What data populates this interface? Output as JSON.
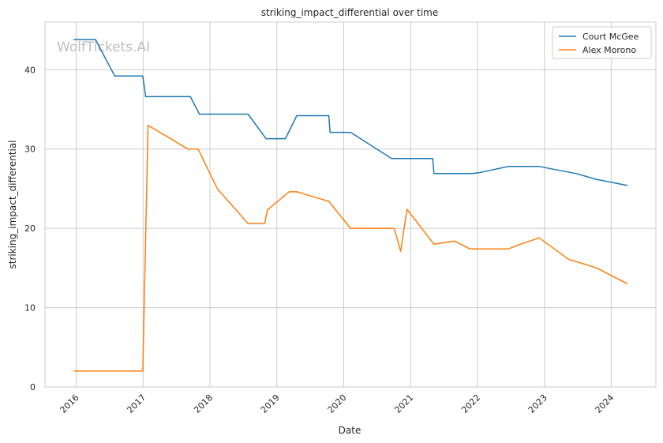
{
  "chart_data": {
    "type": "line",
    "title": "striking_impact_differential over time",
    "xlabel": "Date",
    "ylabel": "striking_impact_differential",
    "watermark": "WolfTickets.AI",
    "x_ticks": [
      "2016",
      "2017",
      "2018",
      "2019",
      "2020",
      "2021",
      "2022",
      "2023",
      "2024"
    ],
    "xlim": [
      "2015-07-15",
      "2024-09-01"
    ],
    "y_ticks": [
      0,
      10,
      20,
      30,
      40
    ],
    "ylim": [
      0,
      46
    ],
    "grid": true,
    "legend_position": "top-right",
    "series": [
      {
        "name": "Court McGee",
        "color": "#1f77b4",
        "points": [
          [
            "2015-12-19",
            43.8
          ],
          [
            "2016-04-16",
            43.8
          ],
          [
            "2016-07-30",
            39.2
          ],
          [
            "2016-12-30",
            39.2
          ],
          [
            "2017-01-15",
            36.6
          ],
          [
            "2017-09-16",
            36.6
          ],
          [
            "2017-11-04",
            34.4
          ],
          [
            "2018-07-28",
            34.4
          ],
          [
            "2018-11-03",
            31.3
          ],
          [
            "2019-02-17",
            31.3
          ],
          [
            "2019-04-20",
            34.2
          ],
          [
            "2019-10-12",
            34.2
          ],
          [
            "2019-10-19",
            32.1
          ],
          [
            "2020-02-08",
            32.1
          ],
          [
            "2020-09-19",
            28.8
          ],
          [
            "2021-05-01",
            28.8
          ],
          [
            "2021-05-08",
            26.9
          ],
          [
            "2021-12-04",
            26.9
          ],
          [
            "2022-01-08",
            27.0
          ],
          [
            "2022-06-18",
            27.8
          ],
          [
            "2022-12-03",
            27.8
          ],
          [
            "2023-06-24",
            26.9
          ],
          [
            "2023-10-07",
            26.2
          ],
          [
            "2024-03-30",
            25.4
          ]
        ]
      },
      {
        "name": "Alex Morono",
        "color": "#ff7f0e",
        "points": [
          [
            "2015-12-19",
            2.0
          ],
          [
            "2016-12-30",
            2.0
          ],
          [
            "2017-01-28",
            33.0
          ],
          [
            "2017-09-02",
            30.0
          ],
          [
            "2017-10-28",
            30.0
          ],
          [
            "2018-02-10",
            25.0
          ],
          [
            "2018-07-28",
            20.6
          ],
          [
            "2018-10-27",
            20.6
          ],
          [
            "2018-11-10",
            22.3
          ],
          [
            "2019-03-09",
            24.6
          ],
          [
            "2019-04-20",
            24.6
          ],
          [
            "2019-10-12",
            23.4
          ],
          [
            "2020-02-08",
            20.0
          ],
          [
            "2020-10-03",
            20.0
          ],
          [
            "2020-11-07",
            17.1
          ],
          [
            "2020-12-12",
            22.4
          ],
          [
            "2021-05-08",
            18.0
          ],
          [
            "2021-08-28",
            18.4
          ],
          [
            "2021-11-20",
            17.4
          ],
          [
            "2022-06-18",
            17.4
          ],
          [
            "2022-08-13",
            17.9
          ],
          [
            "2022-12-03",
            18.8
          ],
          [
            "2023-05-13",
            16.1
          ],
          [
            "2023-10-14",
            15.0
          ],
          [
            "2024-03-30",
            13.0
          ]
        ]
      }
    ]
  }
}
